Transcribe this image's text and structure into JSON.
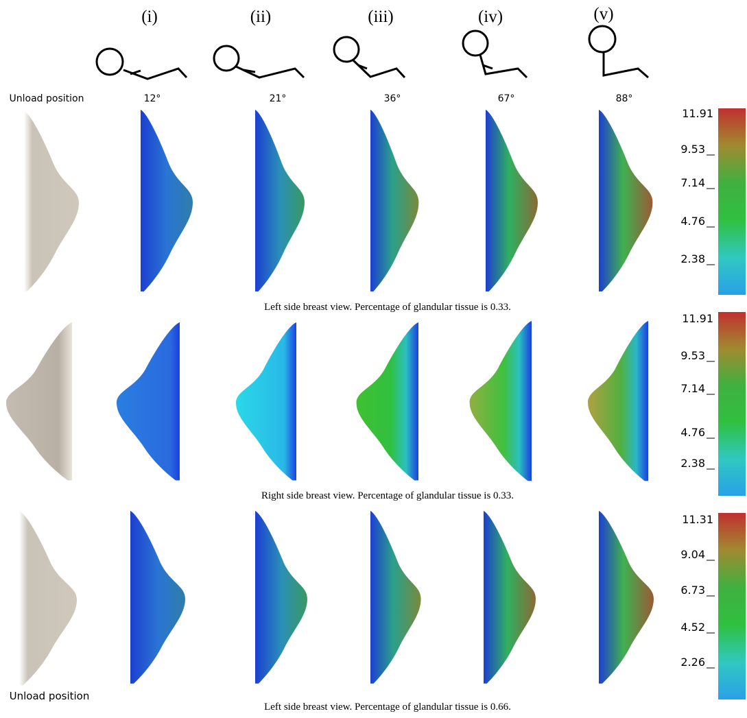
{
  "columns": [
    {
      "label": "(i)",
      "angle": "12°"
    },
    {
      "label": "(ii)",
      "angle": "21°"
    },
    {
      "label": "(iii)",
      "angle": "36°"
    },
    {
      "label": "(iv)",
      "angle": "67°"
    },
    {
      "label": "(v)",
      "angle": "88°"
    }
  ],
  "unload_label_top": "Unload position",
  "unload_label_bottom": "Unload position",
  "rows": [
    {
      "caption": "Left side breast view. Percentage of glandular tissue is 0.33.",
      "colorbar": [
        "11.91",
        "9.53",
        "7.14",
        "4.76",
        "2.38"
      ]
    },
    {
      "caption": "Right side breast view. Percentage of glandular tissue is 0.33.",
      "colorbar": [
        "11.91",
        "9.53",
        "7.14",
        "4.76",
        "2.38"
      ]
    },
    {
      "caption": "Left side breast view. Percentage of glandular tissue is 0.66.",
      "colorbar": [
        "11.31",
        "9.04",
        "6.73",
        "4.52",
        "2.26"
      ]
    }
  ]
}
